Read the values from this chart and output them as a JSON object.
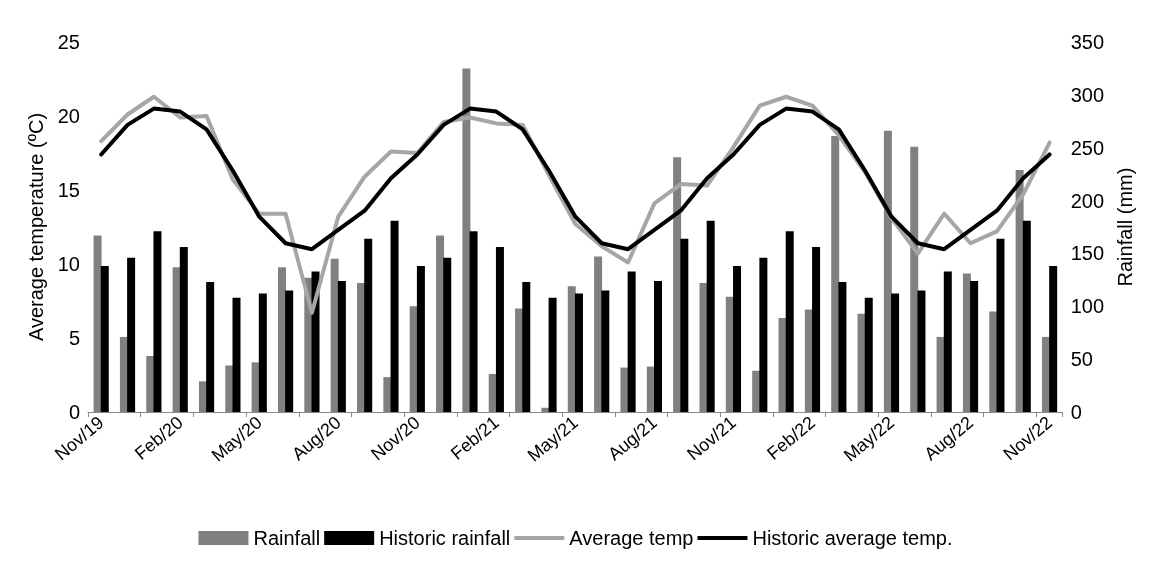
{
  "chart_data": {
    "type": "bar",
    "ylabel": "Average temperature (ºC)",
    "y2label": "Rainfall (mm)",
    "categories": [
      "Nov/19",
      null,
      null,
      "Feb/20",
      null,
      null,
      "May/20",
      null,
      null,
      "Aug/20",
      null,
      null,
      "Nov/20",
      null,
      null,
      "Feb/21",
      null,
      null,
      "May/21",
      null,
      null,
      "Aug/21",
      null,
      null,
      "Nov/21",
      null,
      null,
      "Feb/22",
      null,
      null,
      "May/22",
      null,
      null,
      "Aug/22",
      null,
      null,
      "Nov/22"
    ],
    "series": [
      {
        "name": "Rainfall",
        "axis": "y2",
        "color": "#808080",
        "values": [
          167,
          71,
          53,
          137,
          29,
          44,
          47,
          137,
          127,
          145,
          122,
          33,
          100,
          167,
          325,
          36,
          98,
          4,
          119,
          147,
          42,
          43,
          241,
          122,
          109,
          39,
          89,
          97,
          261,
          93,
          266,
          251,
          71,
          131,
          95,
          229,
          71
        ]
      },
      {
        "name": "Historic rainfall",
        "axis": "y2",
        "color": "#000000",
        "values": [
          138,
          146,
          171,
          156,
          123,
          108,
          112,
          115,
          133,
          124,
          164,
          181,
          138,
          146,
          171,
          156,
          123,
          108,
          112,
          115,
          133,
          124,
          164,
          181,
          138,
          146,
          171,
          156,
          123,
          108,
          112,
          115,
          133,
          124,
          164,
          181,
          138
        ]
      },
      {
        "name": "Average temp",
        "type": "line",
        "color": "#a6a6a6",
        "values": [
          18.3,
          20.1,
          21.3,
          19.9,
          20.0,
          15.7,
          13.4,
          13.4,
          6.7,
          13.2,
          15.9,
          17.6,
          17.5,
          19.6,
          19.9,
          19.5,
          19.4,
          16.0,
          12.7,
          11.2,
          10.1,
          14.1,
          15.4,
          15.3,
          17.9,
          20.7,
          21.3,
          20.7,
          18.7,
          16.2,
          13.1,
          10.7,
          13.4,
          11.4,
          12.2,
          14.7,
          18.2
        ]
      },
      {
        "name": "Historic average temp.",
        "type": "line",
        "color": "#000000",
        "values": [
          17.4,
          19.4,
          20.5,
          20.3,
          19.1,
          16.3,
          13.2,
          11.4,
          11.0,
          12.3,
          13.6,
          15.8,
          17.4,
          19.4,
          20.5,
          20.3,
          19.1,
          16.3,
          13.2,
          11.4,
          11.0,
          12.3,
          13.6,
          15.8,
          17.4,
          19.4,
          20.5,
          20.3,
          19.1,
          16.3,
          13.2,
          11.4,
          11.0,
          12.3,
          13.6,
          15.8,
          17.4
        ]
      }
    ],
    "ylim": [
      0,
      25
    ],
    "yticks": [
      0,
      5,
      10,
      15,
      20,
      25
    ],
    "y2lim": [
      0,
      350
    ],
    "y2ticks": [
      0,
      50,
      100,
      150,
      200,
      250,
      300,
      350
    ],
    "grid": false,
    "legend": "bottom",
    "marker": "none",
    "line_style": "solid"
  }
}
